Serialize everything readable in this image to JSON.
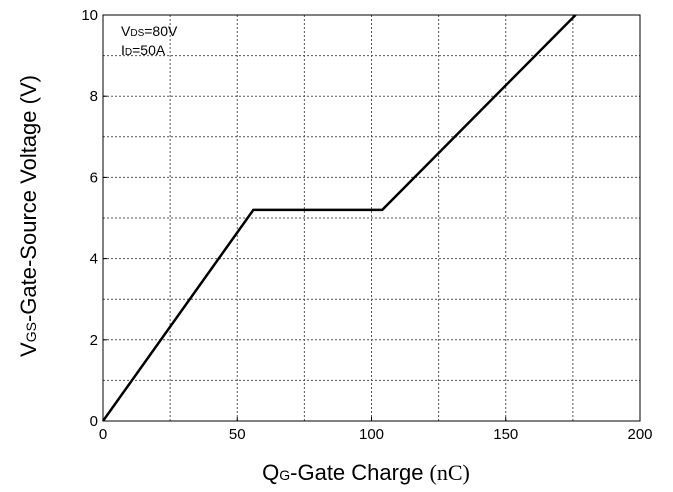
{
  "chart_data": {
    "type": "line",
    "x_title": {
      "main": "Q",
      "sub": "G",
      "rest": "-Gate Charge ",
      "unit": "(nC)"
    },
    "y_title": {
      "main": "V",
      "sub": "GS",
      "rest": "-Gate-Source Voltage (V)"
    },
    "annotations": [
      {
        "main": "V",
        "sub": "DS",
        "rest": "=80V"
      },
      {
        "main": "I",
        "sub": "D",
        "rest": "=50A"
      }
    ],
    "xlim": [
      0,
      200
    ],
    "ylim": [
      0,
      10
    ],
    "x_ticks": [
      0,
      50,
      100,
      150,
      200
    ],
    "y_ticks": [
      0,
      2,
      4,
      6,
      8,
      10
    ],
    "x_grid": [
      0,
      25,
      50,
      75,
      100,
      125,
      150,
      175,
      200
    ],
    "y_grid": [
      0,
      1,
      2,
      3,
      4,
      5,
      6,
      7,
      8,
      9,
      10
    ],
    "grid": true,
    "series": [
      {
        "color": "#000000",
        "x": [
          0,
          56,
          104,
          176
        ],
        "y": [
          0,
          5.2,
          5.2,
          10
        ]
      }
    ]
  }
}
